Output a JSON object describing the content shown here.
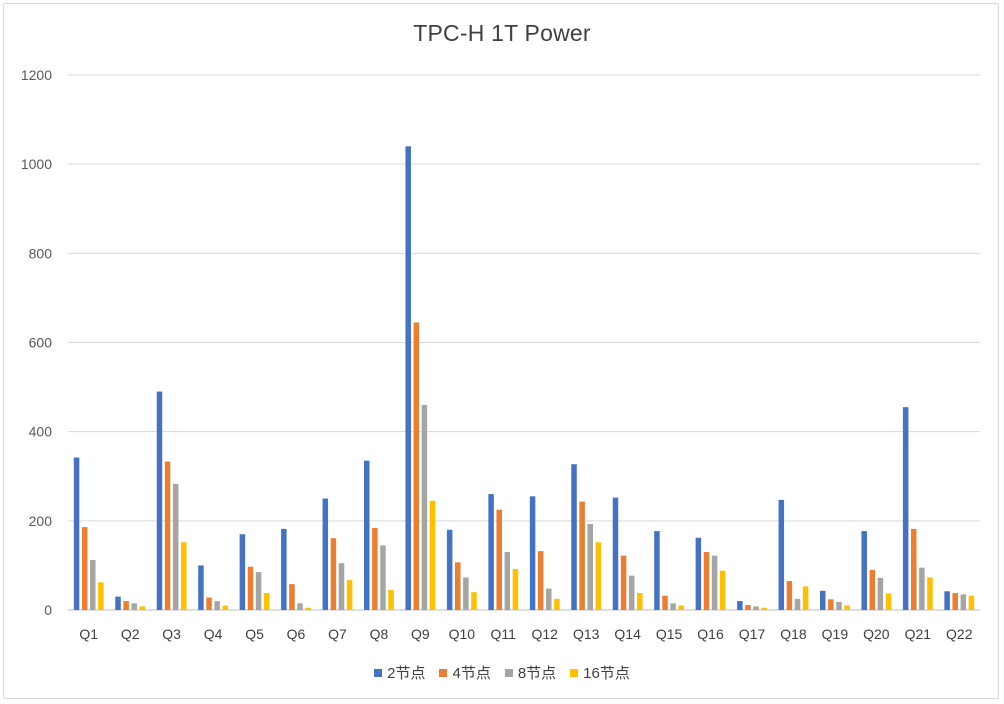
{
  "chart_data": {
    "type": "bar",
    "title": "TPC-H 1T Power",
    "xlabel": "",
    "ylabel": "",
    "ylim": [
      0,
      1200
    ],
    "yticks": [
      0,
      200,
      400,
      600,
      800,
      1000,
      1200
    ],
    "grid": true,
    "legend_position": "bottom",
    "categories": [
      "Q1",
      "Q2",
      "Q3",
      "Q4",
      "Q5",
      "Q6",
      "Q7",
      "Q8",
      "Q9",
      "Q10",
      "Q11",
      "Q12",
      "Q13",
      "Q14",
      "Q15",
      "Q16",
      "Q17",
      "Q18",
      "Q19",
      "Q20",
      "Q21",
      "Q22"
    ],
    "series": [
      {
        "name": "2节点",
        "color": "#4472C4",
        "values": [
          342,
          30,
          490,
          100,
          170,
          182,
          250,
          335,
          1040,
          180,
          260,
          255,
          327,
          252,
          177,
          162,
          20,
          247,
          43,
          177,
          455,
          42
        ]
      },
      {
        "name": "4节点",
        "color": "#ED7D31",
        "values": [
          186,
          20,
          333,
          28,
          97,
          58,
          161,
          184,
          645,
          107,
          225,
          132,
          243,
          122,
          32,
          130,
          11,
          65,
          24,
          90,
          182,
          38
        ]
      },
      {
        "name": "8节点",
        "color": "#A5A5A5",
        "values": [
          112,
          15,
          283,
          20,
          85,
          15,
          105,
          145,
          460,
          73,
          130,
          48,
          193,
          77,
          15,
          122,
          8,
          25,
          18,
          72,
          95,
          35
        ]
      },
      {
        "name": "16节点",
        "color": "#FFC000",
        "values": [
          62,
          8,
          152,
          10,
          38,
          5,
          67,
          45,
          245,
          40,
          92,
          25,
          152,
          38,
          10,
          88,
          5,
          53,
          10,
          37,
          73,
          32
        ]
      }
    ]
  }
}
